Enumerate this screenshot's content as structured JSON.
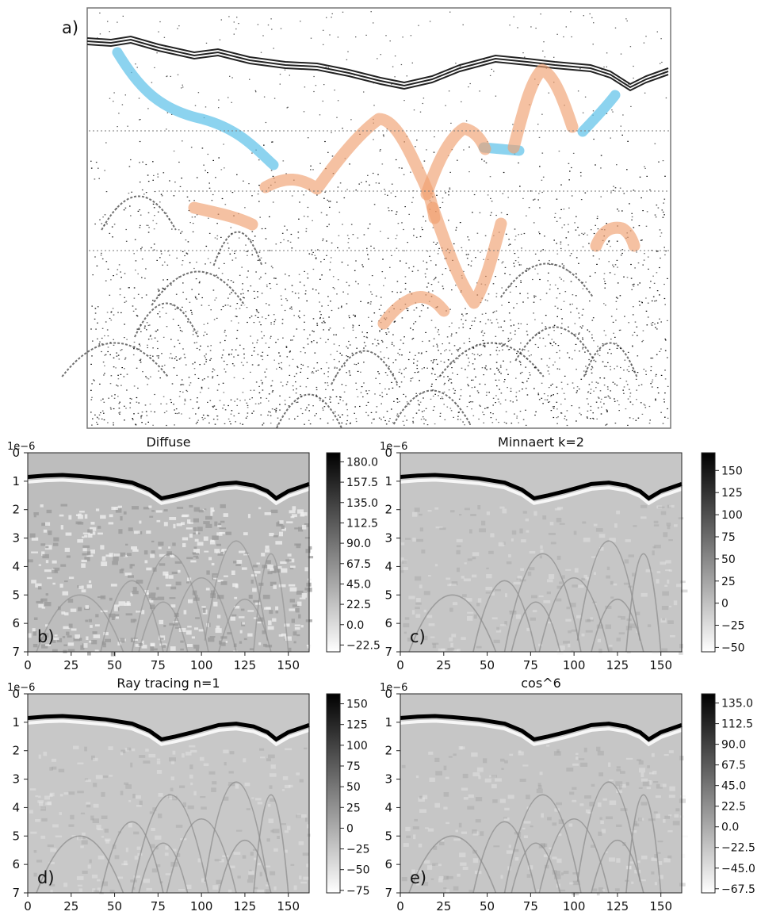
{
  "figure": {
    "panel_a": {
      "letter": "a)"
    }
  },
  "chart_data": [
    {
      "type": "heatmap",
      "letter": "b)",
      "title": "Diffuse",
      "xlim": [
        0,
        162
      ],
      "ylim": [
        7,
        0
      ],
      "x_ticks": [
        "0",
        "25",
        "50",
        "75",
        "100",
        "125",
        "150"
      ],
      "y_ticks": [
        "0",
        "1",
        "2",
        "3",
        "4",
        "5",
        "6",
        "7"
      ],
      "y_offset_label": "1e−6",
      "colorbar": {
        "ticks": [
          "180.0",
          "157.5",
          "135.0",
          "112.5",
          "90.0",
          "67.5",
          "45.0",
          "22.5",
          "0.0",
          "−22.5"
        ],
        "min": -30,
        "max": 190
      },
      "colormap": "gray_r",
      "surface_trace": {
        "x": [
          0,
          10,
          20,
          30,
          45,
          60,
          70,
          77,
          85,
          95,
          110,
          120,
          130,
          138,
          143,
          150,
          162
        ],
        "y": [
          0.85,
          0.8,
          0.78,
          0.82,
          0.9,
          1.05,
          1.3,
          1.6,
          1.5,
          1.35,
          1.1,
          1.05,
          1.15,
          1.35,
          1.6,
          1.35,
          1.1
        ]
      }
    },
    {
      "type": "heatmap",
      "letter": "c)",
      "title": "Minnaert k=2",
      "xlim": [
        0,
        162
      ],
      "ylim": [
        7,
        0
      ],
      "x_ticks": [
        "0",
        "25",
        "50",
        "75",
        "100",
        "125",
        "150"
      ],
      "y_ticks": [
        "0",
        "1",
        "2",
        "3",
        "4",
        "5",
        "6",
        "7"
      ],
      "y_offset_label": "1e−6",
      "colorbar": {
        "ticks": [
          "150",
          "125",
          "100",
          "75",
          "50",
          "25",
          "0",
          "−25",
          "−50"
        ],
        "min": -55,
        "max": 170
      },
      "colormap": "gray_r",
      "surface_trace": {
        "x": [
          0,
          10,
          20,
          30,
          45,
          60,
          70,
          77,
          85,
          95,
          110,
          120,
          130,
          138,
          143,
          150,
          162
        ],
        "y": [
          0.85,
          0.8,
          0.78,
          0.82,
          0.9,
          1.05,
          1.3,
          1.6,
          1.5,
          1.35,
          1.1,
          1.05,
          1.15,
          1.35,
          1.6,
          1.35,
          1.1
        ]
      }
    },
    {
      "type": "heatmap",
      "letter": "d)",
      "title": "Ray tracing n=1",
      "xlim": [
        0,
        162
      ],
      "ylim": [
        7,
        0
      ],
      "x_ticks": [
        "0",
        "25",
        "50",
        "75",
        "100",
        "125",
        "150"
      ],
      "y_ticks": [
        "0",
        "1",
        "2",
        "3",
        "4",
        "5",
        "6",
        "7"
      ],
      "y_offset_label": "1e−6",
      "colorbar": {
        "ticks": [
          "150",
          "125",
          "100",
          "75",
          "50",
          "25",
          "0",
          "−25",
          "−50",
          "−75"
        ],
        "min": -78,
        "max": 162
      },
      "colormap": "gray_r",
      "surface_trace": {
        "x": [
          0,
          10,
          20,
          30,
          45,
          60,
          70,
          77,
          85,
          95,
          110,
          120,
          130,
          138,
          143,
          150,
          162
        ],
        "y": [
          0.85,
          0.8,
          0.78,
          0.82,
          0.9,
          1.05,
          1.3,
          1.6,
          1.5,
          1.35,
          1.1,
          1.05,
          1.15,
          1.35,
          1.6,
          1.35,
          1.1
        ]
      }
    },
    {
      "type": "heatmap",
      "letter": "e)",
      "title": "cos^6",
      "xlim": [
        0,
        162
      ],
      "ylim": [
        7,
        0
      ],
      "x_ticks": [
        "0",
        "25",
        "50",
        "75",
        "100",
        "125",
        "150"
      ],
      "y_ticks": [
        "0",
        "1",
        "2",
        "3",
        "4",
        "5",
        "6",
        "7"
      ],
      "y_offset_label": "1e−6",
      "colorbar": {
        "ticks": [
          "135.0",
          "112.5",
          "90.0",
          "67.5",
          "45.0",
          "22.5",
          "0.0",
          "−22.5",
          "−45.0",
          "−67.5"
        ],
        "min": -72,
        "max": 145
      },
      "colormap": "gray_r",
      "surface_trace": {
        "x": [
          0,
          10,
          20,
          30,
          45,
          60,
          70,
          77,
          85,
          95,
          110,
          120,
          130,
          138,
          143,
          150,
          162
        ],
        "y": [
          0.85,
          0.8,
          0.78,
          0.82,
          0.9,
          1.05,
          1.3,
          1.6,
          1.5,
          1.35,
          1.1,
          1.05,
          1.15,
          1.35,
          1.6,
          1.35,
          1.1
        ]
      }
    }
  ]
}
